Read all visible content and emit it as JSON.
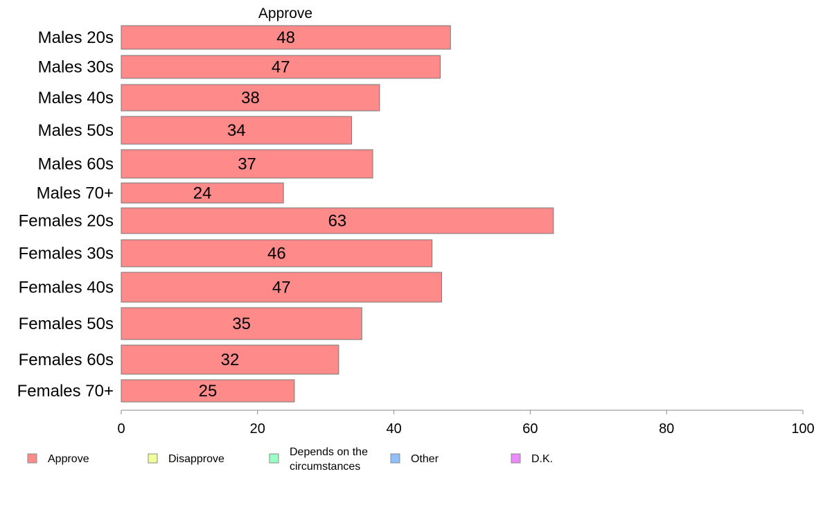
{
  "chart_data": {
    "type": "bar",
    "orientation": "horizontal",
    "title": "Approve",
    "categories": [
      "Males 20s",
      "Males 30s",
      "Males 40s",
      "Males 50s",
      "Males 60s",
      "Males 70+",
      "Females 20s",
      "Females 30s",
      "Females 40s",
      "Females 50s",
      "Females 60s",
      "Females 70+"
    ],
    "series": [
      {
        "name": "Approve",
        "color": "#ff8a8a",
        "values": [
          48.3,
          46.8,
          37.9,
          33.8,
          36.9,
          23.8,
          63.4,
          45.6,
          47.0,
          35.3,
          31.9,
          25.4
        ],
        "labels": [
          "48",
          "47",
          "38",
          "34",
          "37",
          "24",
          "63",
          "46",
          "47",
          "35",
          "32",
          "25"
        ]
      }
    ],
    "xlim": [
      0,
      100
    ],
    "xticks": [
      "0",
      "20",
      "40",
      "60",
      "80",
      "100"
    ],
    "grid": false,
    "legend": {
      "position": "bottom",
      "items": [
        {
          "label": "Approve",
          "color": "#ff8a8a"
        },
        {
          "label": "Disapprove",
          "color": "#f2ff9a"
        },
        {
          "label": "Depends on the circumstances",
          "lines": [
            "Depends on the",
            "circumstances"
          ],
          "color": "#9affc4"
        },
        {
          "label": "Other",
          "color": "#8fbfff"
        },
        {
          "label": "D.K.",
          "color": "#ee88ff"
        }
      ]
    }
  }
}
